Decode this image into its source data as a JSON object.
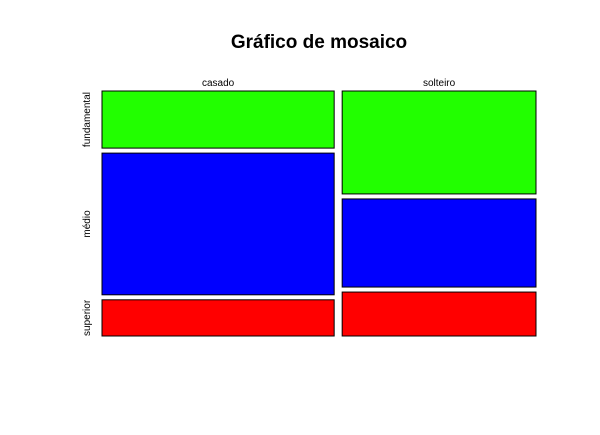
{
  "chart_data": {
    "type": "mosaic",
    "title": "Gráfico de mosaico",
    "xlabel": "",
    "ylabel": "",
    "categories": [
      "casado",
      "solteiro"
    ],
    "column_proportions": [
      0.545,
      0.455
    ],
    "rows": [
      "fundamental",
      "médio",
      "superior"
    ],
    "row_colors": [
      "#22ff00",
      "#0000ff",
      "#ff0000"
    ],
    "series": [
      {
        "name": "fundamental",
        "values": [
          0.243,
          0.438
        ]
      },
      {
        "name": "médio",
        "values": [
          0.603,
          0.375
        ]
      },
      {
        "name": "superior",
        "values": [
          0.154,
          0.187
        ]
      }
    ]
  }
}
